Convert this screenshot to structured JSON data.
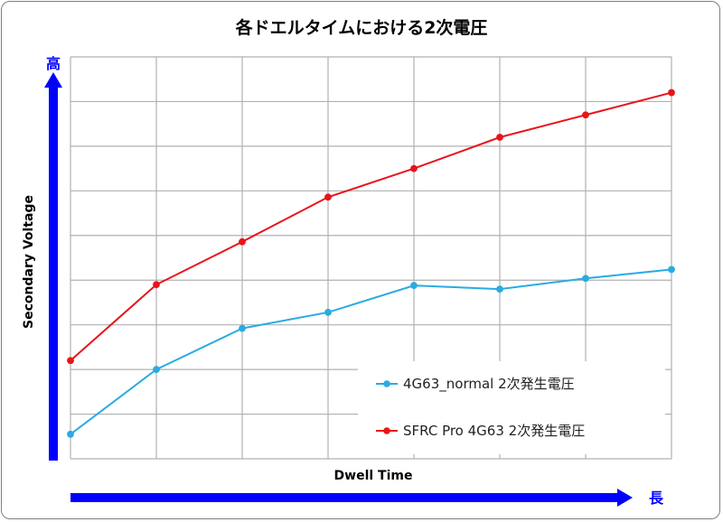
{
  "chart_data": {
    "type": "line",
    "title": "各ドエルタイムにおける2次電圧",
    "xlabel": "Dwell Time",
    "ylabel": "Secondary Voltage",
    "y_high_label": "高",
    "x_long_label": "長",
    "x": [
      1,
      2,
      3,
      4,
      5,
      6,
      7,
      8
    ],
    "ylim": [
      0,
      9
    ],
    "grid": true,
    "legend_position": "bottom-right",
    "colors": {
      "normal": "#29abe2",
      "sfrc": "#e8141a",
      "arrow": "#0000ff",
      "grid": "#b0b0b0"
    },
    "series": [
      {
        "name": "4G63_normal 2次発生電圧",
        "color": "#29abe2",
        "values": [
          0.55,
          2.0,
          2.92,
          3.28,
          3.88,
          3.8,
          4.04,
          4.24
        ]
      },
      {
        "name": "SFRC Pro 4G63 2次発生電圧",
        "color": "#e8141a",
        "values": [
          2.2,
          3.9,
          4.86,
          5.86,
          6.5,
          7.2,
          7.7,
          8.2
        ]
      }
    ]
  }
}
